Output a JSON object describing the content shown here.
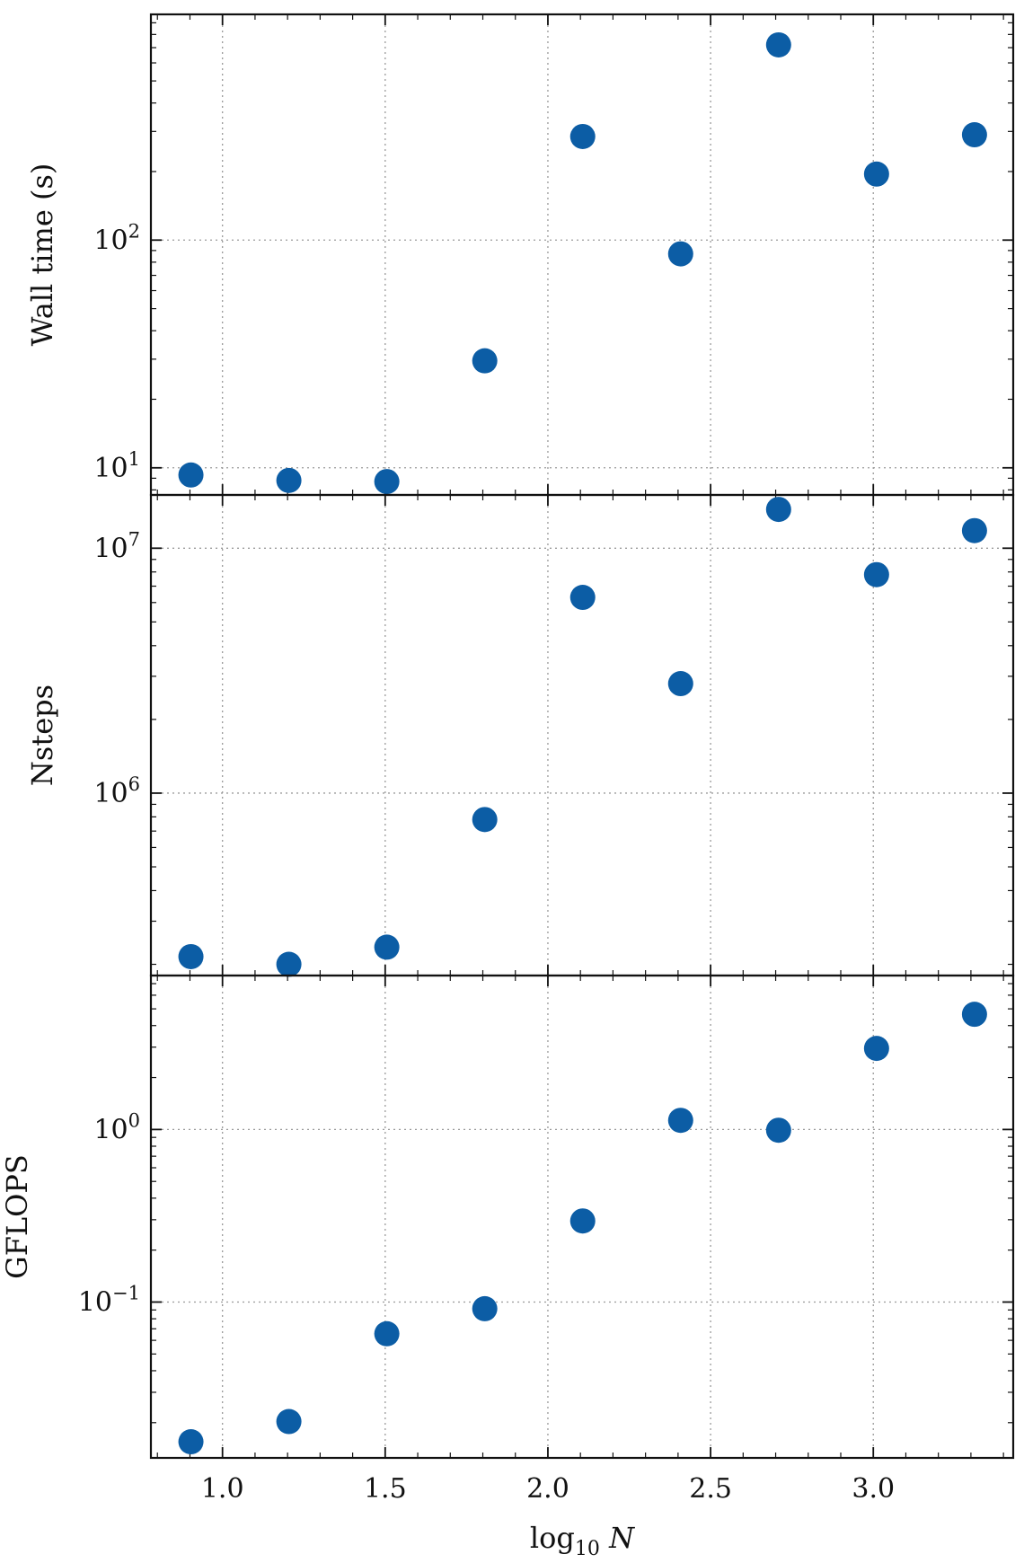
{
  "chart_data": {
    "type": "scatter",
    "shared_x": {
      "xlabel": "log10 N",
      "xlim": [
        0.78,
        3.43
      ],
      "xticks": [
        1.0,
        1.5,
        2.0,
        2.5,
        3.0
      ],
      "xtick_labels": [
        "1.0",
        "1.5",
        "2.0",
        "2.5",
        "3.0"
      ]
    },
    "point_color": "#0C5DA5",
    "grid": true,
    "panels": [
      {
        "ylabel": "Wall time (s)",
        "yscale": "log",
        "ylim": [
          7.6,
          980
        ],
        "yticks": [
          {
            "value": 10,
            "base": "10",
            "exp": "1"
          },
          {
            "value": 100,
            "base": "10",
            "exp": "2"
          }
        ],
        "x": [
          0.903,
          1.204,
          1.505,
          1.806,
          2.107,
          2.408,
          2.709,
          3.01,
          3.311
        ],
        "y": [
          9.3,
          8.8,
          8.7,
          29.5,
          285,
          87,
          720,
          195,
          290
        ]
      },
      {
        "ylabel": "Nsteps",
        "yscale": "log",
        "ylim": [
          180000,
          16500000
        ],
        "yticks": [
          {
            "value": 1000000,
            "base": "10",
            "exp": "6"
          },
          {
            "value": 10000000,
            "base": "10",
            "exp": "7"
          }
        ],
        "x": [
          0.903,
          1.204,
          1.505,
          1.806,
          2.107,
          2.408,
          2.709,
          3.01,
          3.311
        ],
        "y": [
          215000,
          200000,
          235000,
          780000,
          6300000,
          2800000,
          14400000,
          7800000,
          11800000
        ]
      },
      {
        "ylabel": "GFLOPS",
        "yscale": "log",
        "ylim": [
          0.0125,
          7.8
        ],
        "yticks": [
          {
            "value": 0.1,
            "base": "10",
            "exp": "−1"
          },
          {
            "value": 1,
            "base": "10",
            "exp": "0"
          }
        ],
        "x": [
          0.903,
          1.204,
          1.505,
          1.806,
          2.107,
          2.408,
          2.709,
          3.01,
          3.311
        ],
        "y": [
          0.0155,
          0.0203,
          0.0655,
          0.0915,
          0.295,
          1.13,
          0.99,
          2.95,
          4.65
        ]
      }
    ]
  }
}
